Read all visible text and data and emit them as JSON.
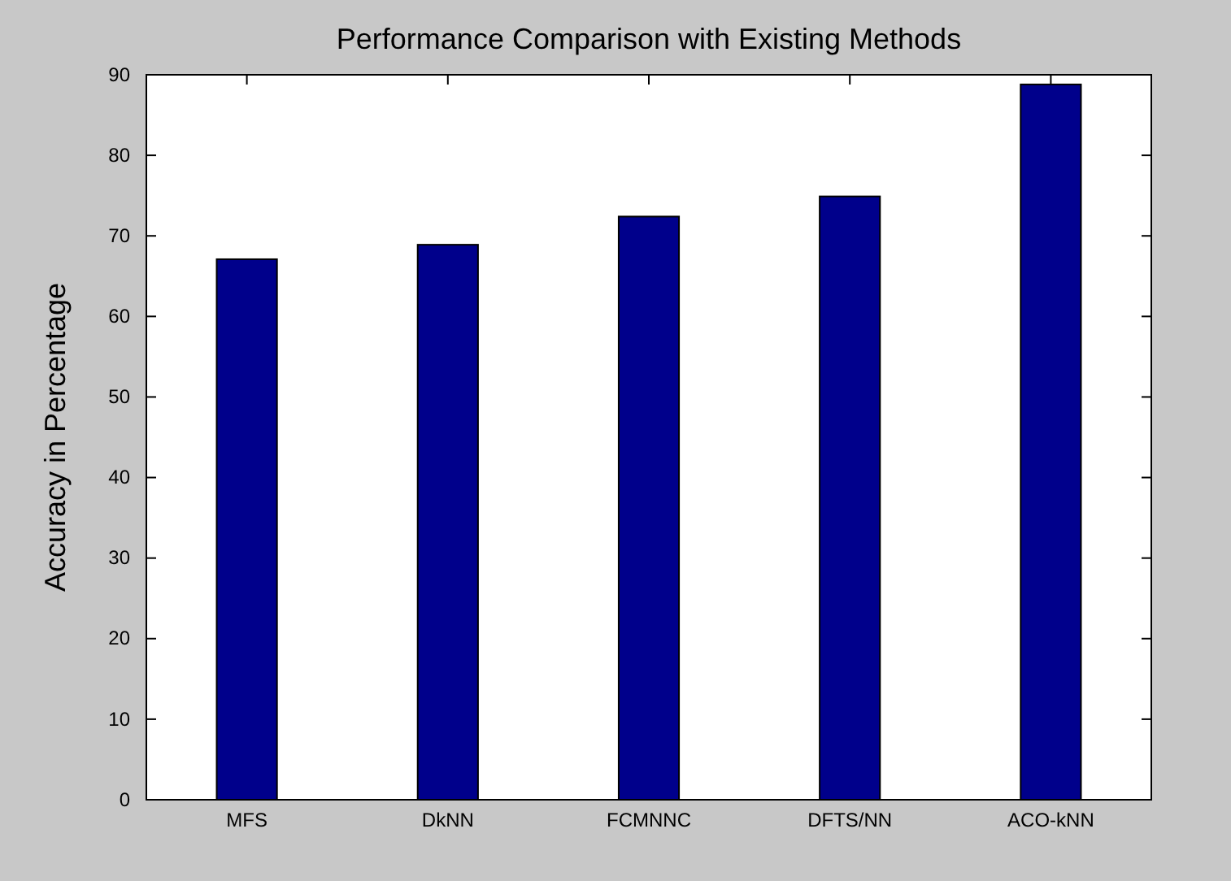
{
  "chart_data": {
    "type": "bar",
    "title": "Performance Comparison with Existing Methods",
    "ylabel": "Accuracy in Percentage",
    "categories": [
      "MFS",
      "DkNN",
      "FCMNNC",
      "DFTS/NN",
      "ACO-kNN"
    ],
    "values": [
      67.1,
      68.9,
      72.4,
      74.9,
      88.8
    ],
    "color": "#00008b",
    "ylim": [
      0,
      90
    ],
    "yticks": [
      0,
      10,
      20,
      30,
      40,
      50,
      60,
      70,
      80,
      90
    ],
    "grid": false
  }
}
